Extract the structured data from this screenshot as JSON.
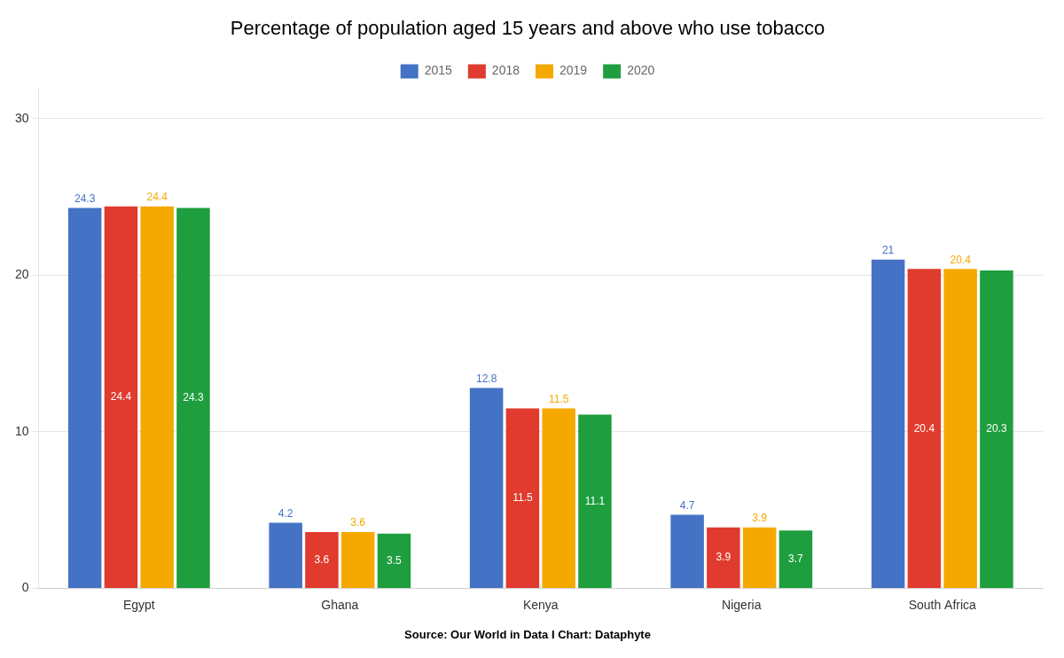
{
  "chart_data": {
    "type": "bar",
    "title": "Percentage of population aged 15 years and above who use tobacco",
    "annotations": [
      "Source: Our World in Data I Chart: Dataphyte"
    ],
    "categories": [
      "Egypt",
      "Ghana",
      "Kenya",
      "Nigeria",
      "South Africa"
    ],
    "series": [
      {
        "name": "2015",
        "color": "#4472C4",
        "values": [
          24.3,
          4.2,
          12.8,
          4.7,
          21.0
        ]
      },
      {
        "name": "2018",
        "color": "#E03B2E",
        "values": [
          24.4,
          3.6,
          11.5,
          3.9,
          20.4
        ]
      },
      {
        "name": "2019",
        "color": "#F5A800",
        "values": [
          24.4,
          3.6,
          11.5,
          3.9,
          20.4
        ]
      },
      {
        "name": "2020",
        "color": "#1E9E3E",
        "values": [
          24.3,
          3.5,
          11.1,
          3.7,
          20.3
        ]
      }
    ],
    "ylim": [
      0,
      32
    ],
    "yticks": [
      0,
      10,
      20,
      30
    ],
    "grid": true,
    "legend": "top",
    "data_labels": true
  }
}
